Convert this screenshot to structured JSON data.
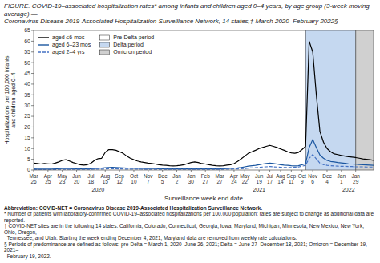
{
  "chart_data": {
    "type": "line",
    "title": "FIGURE. COVID-19–associated hospitalization rates* among infants and children aged 0–4 years, by age group (3-week moving average) —\nCoronavirus Disease 2019-Associated Hospitalization Surveillance Network, 14 states,† March 2020–February 2022§",
    "x_label": "Surveillance week end date",
    "y_label": "Hospitalizations per 100,000 infants\nand children aged 0–4",
    "ylim": [
      0,
      65
    ],
    "yticks": [
      0,
      5,
      10,
      15,
      20,
      25,
      30,
      35,
      40,
      45,
      50,
      55,
      60,
      65
    ],
    "grid": false,
    "legend": "upper left",
    "categories": [
      "Mar\n26",
      null,
      null,
      null,
      "Apr\n25",
      null,
      null,
      null,
      "May\n23",
      null,
      null,
      null,
      "Jun\n20",
      null,
      null,
      null,
      "Jul\n18",
      null,
      null,
      null,
      "Aug\n15",
      null,
      null,
      null,
      "Sep\n12",
      null,
      null,
      null,
      "Oct\n10",
      null,
      null,
      null,
      "Nov\n7",
      null,
      null,
      null,
      "Dec\n5",
      null,
      null,
      null,
      "Jan\n2",
      null,
      null,
      null,
      "Jan\n30",
      null,
      null,
      null,
      "Feb\n27",
      null,
      null,
      null,
      "Mar\n27",
      null,
      null,
      null,
      "Apr\n24",
      null,
      null,
      "May\n22",
      null,
      null,
      null,
      "Jun\n19",
      null,
      null,
      "Jul\n17",
      null,
      null,
      "Aug\n14",
      null,
      null,
      "Sep\n11",
      null,
      null,
      "Oct\n9",
      null,
      null,
      "Nov\n6",
      null,
      null,
      null,
      "Dec\n4",
      null,
      null,
      null,
      "Jan\n1",
      null,
      null,
      null,
      "Jan\n29",
      null,
      null,
      null,
      null,
      null
    ],
    "series": [
      {
        "name": "aged ≤6 mos",
        "color": "#000000",
        "line_style": "solid",
        "values": [
          3.2,
          3.0,
          2.8,
          3.0,
          2.9,
          2.8,
          3.2,
          3.8,
          4.5,
          4.8,
          4.2,
          3.5,
          3.0,
          2.5,
          2.3,
          2.5,
          3.2,
          4.5,
          5.3,
          5.5,
          8.2,
          9.5,
          9.5,
          9.2,
          8.5,
          7.8,
          6.5,
          5.5,
          4.8,
          4.2,
          3.8,
          3.5,
          3.2,
          3.0,
          2.8,
          2.5,
          2.3,
          2.2,
          2.0,
          1.9,
          2.0,
          2.2,
          2.5,
          3.0,
          3.5,
          3.8,
          3.5,
          3.0,
          2.8,
          2.5,
          2.2,
          2.0,
          1.9,
          2.0,
          2.3,
          2.5,
          3.0,
          4.0,
          5.2,
          6.5,
          7.8,
          8.5,
          9.2,
          10.0,
          10.5,
          11.0,
          11.5,
          11.0,
          10.5,
          9.8,
          9.2,
          8.5,
          8.0,
          7.8,
          8.2,
          9.5,
          11.0,
          60.0,
          55.0,
          35.0,
          18.0,
          13.0,
          10.0,
          8.5,
          7.5,
          7.2,
          6.8,
          6.5,
          6.2,
          6.0,
          5.8,
          5.5,
          5.2,
          5.0,
          4.8,
          4.5
        ]
      },
      {
        "name": "aged 6–23 mos",
        "color": "#1a56a0",
        "line_style": "solid",
        "values": [
          0.5,
          0.4,
          0.4,
          0.4,
          0.4,
          0.4,
          0.5,
          0.6,
          0.7,
          0.8,
          0.7,
          0.6,
          0.5,
          0.5,
          0.5,
          0.5,
          0.6,
          0.7,
          0.8,
          0.9,
          1.1,
          1.2,
          1.3,
          1.2,
          1.1,
          1.0,
          0.9,
          0.9,
          0.8,
          0.8,
          0.8,
          0.7,
          0.7,
          0.7,
          0.7,
          0.6,
          0.6,
          0.5,
          0.5,
          0.5,
          0.5,
          0.5,
          0.5,
          0.5,
          0.5,
          0.5,
          0.5,
          0.5,
          0.5,
          0.5,
          0.5,
          0.5,
          0.5,
          0.6,
          0.7,
          0.8,
          0.9,
          1.0,
          1.2,
          1.5,
          1.8,
          2.0,
          2.2,
          2.5,
          2.8,
          3.0,
          3.2,
          3.0,
          2.8,
          2.5,
          2.3,
          2.2,
          2.0,
          1.9,
          2.0,
          2.5,
          3.0,
          10.5,
          14.2,
          10.5,
          7.0,
          5.5,
          4.5,
          4.0,
          3.8,
          3.5,
          3.3,
          3.1,
          2.9,
          2.8,
          2.7,
          2.6,
          2.5,
          2.4,
          2.3,
          2.2
        ]
      },
      {
        "name": "aged 2–4 yrs",
        "color": "#4472c4",
        "line_style": "dashed",
        "values": [
          0.2,
          0.2,
          0.2,
          0.2,
          0.2,
          0.2,
          0.2,
          0.3,
          0.3,
          0.3,
          0.3,
          0.3,
          0.3,
          0.3,
          0.3,
          0.3,
          0.3,
          0.4,
          0.4,
          0.4,
          0.5,
          0.6,
          0.6,
          0.6,
          0.5,
          0.5,
          0.4,
          0.4,
          0.4,
          0.4,
          0.4,
          0.3,
          0.3,
          0.3,
          0.3,
          0.3,
          0.3,
          0.3,
          0.3,
          0.3,
          0.3,
          0.3,
          0.3,
          0.3,
          0.3,
          0.3,
          0.3,
          0.3,
          0.3,
          0.3,
          0.3,
          0.3,
          0.3,
          0.3,
          0.4,
          0.4,
          0.5,
          0.5,
          0.6,
          0.7,
          0.9,
          1.0,
          1.1,
          1.2,
          1.4,
          1.5,
          1.6,
          1.5,
          1.4,
          1.3,
          1.2,
          1.2,
          1.2,
          1.3,
          1.4,
          1.8,
          2.2,
          5.5,
          7.2,
          5.2,
          3.2,
          2.5,
          2.2,
          2.0,
          1.9,
          1.8,
          1.7,
          1.7,
          1.6,
          1.6,
          1.5,
          1.5,
          1.5,
          1.4,
          1.4,
          1.4
        ]
      }
    ],
    "periods": [
      {
        "name": "Pre-Delta period",
        "color": "#ffffff",
        "start": 0,
        "end": 76
      },
      {
        "name": "Delta period",
        "color": "#c5d8f0",
        "start": 76,
        "end": 90
      },
      {
        "name": "Omicron period",
        "color": "#d0d0d0",
        "start": 90,
        "end": 95
      }
    ],
    "annotations": [
      {
        "text": "2020",
        "x": 18
      },
      {
        "text": "2021",
        "x": 63
      },
      {
        "text": "2022",
        "x": 88
      }
    ],
    "footnotes": [
      "Abbreviation: COVID-NET = Coronavirus Disease 2019-Associated Hospitalization Surveillance Network.",
      "* Number of patients with laboratory-confirmed COVID-19–associated hospitalizations per 100,000 population; rates are subject to change as additional data are reported.",
      "† COVID-NET sites are in the following 14 states: California, Colorado, Connecticut, Georgia, Iowa, Maryland, Michigan, Minnesota, New Mexico, New York, Ohio, Oregon,",
      "  Tennessee, and Utah. Starting the week ending December 4, 2021, Maryland data are removed from weekly rate calculations.",
      "§ Periods of predominance are defined as follows: pre-Delta = March 1, 2020–June 26, 2021; Delta = June 27–December 18, 2021; Omicron = December 19, 2021–",
      "  February 19, 2022."
    ]
  }
}
